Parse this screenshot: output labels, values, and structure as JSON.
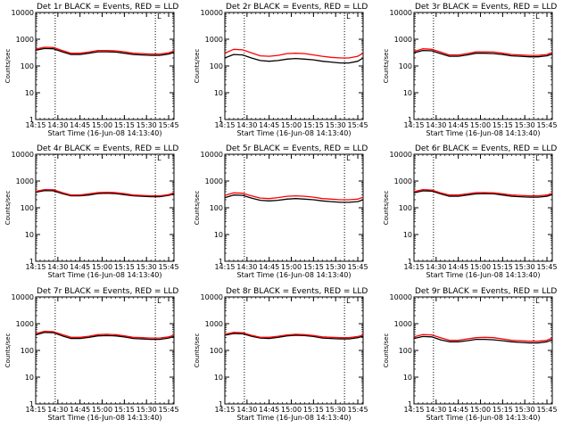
{
  "figure": {
    "xlabel": "Start Time (16-Jun-08 14:13:40)",
    "ylabel": "Counts/sec"
  },
  "chart_data": {
    "type": "line",
    "grid": "3x3 panels",
    "yscale": "log",
    "ylim": [
      1,
      10000
    ],
    "ytick_values": [
      1,
      10,
      100,
      1000,
      10000
    ],
    "ytick_labels": [
      "1",
      "10",
      "100",
      "1000",
      "10000"
    ],
    "xlim": [
      14.25,
      15.81
    ],
    "xtick_values": [
      14.25,
      14.5,
      14.75,
      15.0,
      15.25,
      15.5,
      15.75
    ],
    "xtick_labels": [
      "14:15",
      "14:30",
      "14:45",
      "15:00",
      "15:15",
      "15:30",
      "15:45"
    ],
    "vlines": [
      14.47,
      15.6
    ],
    "marker_label": "L",
    "marker_x": 15.6,
    "xlabel": "Start Time (16-Jun-08 14:13:40)",
    "ylabel": "Counts/sec",
    "x": [
      14.25,
      14.35,
      14.45,
      14.55,
      14.65,
      14.75,
      14.85,
      14.95,
      15.05,
      15.15,
      15.25,
      15.35,
      15.45,
      15.55,
      15.65,
      15.75,
      15.81
    ],
    "panels": [
      {
        "title": "Det 1r BLACK = Events, RED = LLD",
        "series": [
          {
            "name": "Events",
            "color": "#000000",
            "values": [
              390,
              450,
              440,
              340,
              270,
              270,
              300,
              340,
              340,
              330,
              300,
              270,
              260,
              250,
              250,
              280,
              320
            ]
          },
          {
            "name": "LLD",
            "color": "#ff0000",
            "values": [
              430,
              500,
              490,
              380,
              300,
              300,
              330,
              380,
              380,
              370,
              340,
              300,
              290,
              280,
              280,
              310,
              360
            ]
          }
        ]
      },
      {
        "title": "Det 2r BLACK = Events, RED = LLD",
        "series": [
          {
            "name": "Events",
            "color": "#000000",
            "values": [
              200,
              270,
              260,
              200,
              160,
              150,
              160,
              180,
              190,
              180,
              170,
              150,
              140,
              130,
              130,
              150,
              200
            ]
          },
          {
            "name": "LLD",
            "color": "#ff0000",
            "values": [
              300,
              420,
              400,
              310,
              240,
              230,
              250,
              290,
              300,
              290,
              260,
              230,
              210,
              200,
              200,
              230,
              300
            ]
          }
        ]
      },
      {
        "title": "Det 3r BLACK = Events, RED = LLD",
        "series": [
          {
            "name": "Events",
            "color": "#000000",
            "values": [
              310,
              380,
              370,
              290,
              230,
              230,
              260,
              300,
              300,
              290,
              270,
              240,
              230,
              220,
              220,
              240,
              280
            ]
          },
          {
            "name": "LLD",
            "color": "#ff0000",
            "values": [
              350,
              440,
              420,
              330,
              260,
              260,
              290,
              340,
              340,
              330,
              300,
              270,
              260,
              250,
              250,
              270,
              320
            ]
          }
        ]
      },
      {
        "title": "Det 4r BLACK = Events, RED = LLD",
        "series": [
          {
            "name": "Events",
            "color": "#000000",
            "values": [
              380,
              440,
              430,
              340,
              280,
              280,
              300,
              340,
              350,
              340,
              310,
              280,
              270,
              260,
              260,
              290,
              330
            ]
          },
          {
            "name": "LLD",
            "color": "#ff0000",
            "values": [
              410,
              480,
              470,
              370,
              300,
              300,
              330,
              370,
              380,
              370,
              340,
              300,
              290,
              280,
              280,
              310,
              360
            ]
          }
        ]
      },
      {
        "title": "Det 5r BLACK = Events, RED = LLD",
        "series": [
          {
            "name": "Events",
            "color": "#000000",
            "values": [
              240,
              300,
              290,
              230,
              190,
              180,
              190,
              210,
              220,
              210,
              200,
              180,
              170,
              160,
              160,
              170,
              200
            ]
          },
          {
            "name": "LLD",
            "color": "#ff0000",
            "values": [
              290,
              360,
              350,
              280,
              230,
              220,
              240,
              270,
              280,
              270,
              250,
              220,
              210,
              200,
              200,
              210,
              250
            ]
          }
        ]
      },
      {
        "title": "Det 6r BLACK = Events, RED = LLD",
        "series": [
          {
            "name": "Events",
            "color": "#000000",
            "values": [
              360,
              430,
              420,
              330,
              270,
              270,
              300,
              330,
              340,
              330,
              300,
              270,
              260,
              250,
              250,
              270,
              310
            ]
          },
          {
            "name": "LLD",
            "color": "#ff0000",
            "values": [
              400,
              480,
              460,
              360,
              300,
              300,
              330,
              370,
              370,
              360,
              330,
              300,
              290,
              280,
              280,
              300,
              350
            ]
          }
        ]
      },
      {
        "title": "Det 7r BLACK = Events, RED = LLD",
        "series": [
          {
            "name": "Events",
            "color": "#000000",
            "values": [
              380,
              470,
              460,
              350,
              280,
              280,
              310,
              350,
              360,
              350,
              320,
              280,
              270,
              260,
              260,
              290,
              330
            ]
          },
          {
            "name": "LLD",
            "color": "#ff0000",
            "values": [
              420,
              520,
              500,
              390,
              310,
              310,
              340,
              390,
              400,
              390,
              350,
              310,
              300,
              290,
              290,
              320,
              370
            ]
          }
        ]
      },
      {
        "title": "Det 8r BLACK = Events, RED = LLD",
        "series": [
          {
            "name": "Events",
            "color": "#000000",
            "values": [
              370,
              430,
              420,
              340,
              290,
              280,
              310,
              350,
              370,
              360,
              330,
              290,
              280,
              270,
              270,
              300,
              340
            ]
          },
          {
            "name": "LLD",
            "color": "#ff0000",
            "values": [
              400,
              470,
              460,
              370,
              310,
              310,
              340,
              380,
              400,
              390,
              360,
              320,
              310,
              300,
              300,
              330,
              370
            ]
          }
        ]
      },
      {
        "title": "Det 9r BLACK = Events, RED = LLD",
        "series": [
          {
            "name": "Events",
            "color": "#000000",
            "values": [
              280,
              330,
              320,
              250,
              210,
              210,
              230,
              260,
              260,
              250,
              230,
              210,
              200,
              190,
              190,
              210,
              250
            ]
          },
          {
            "name": "LLD",
            "color": "#ff0000",
            "values": [
              320,
              390,
              380,
              300,
              240,
              240,
              270,
              300,
              310,
              300,
              270,
              240,
              230,
              220,
              220,
              240,
              290
            ]
          }
        ]
      }
    ]
  }
}
